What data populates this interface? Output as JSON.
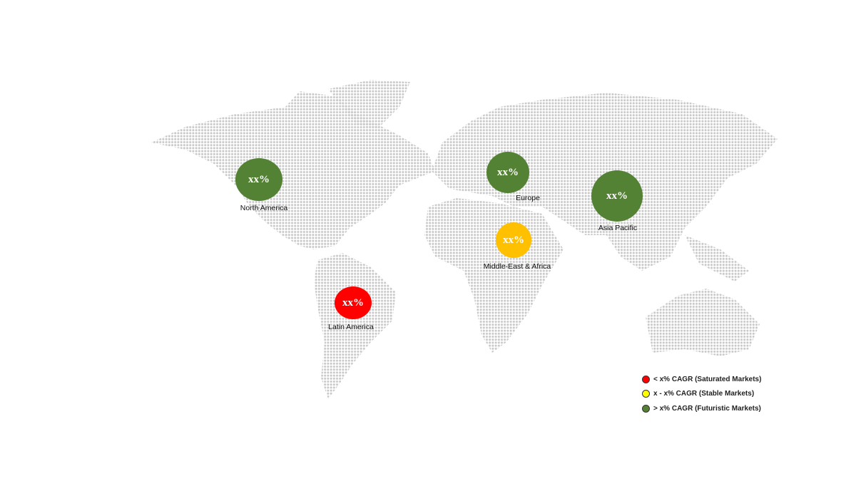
{
  "colors": {
    "saturated": "#ff0000",
    "stable": "#ffff00",
    "futuristic": "#548235",
    "bubble_yellow": "#ffc000",
    "land_dots": "#c8c8c8"
  },
  "regions": [
    {
      "name": "North America",
      "value": "xx%",
      "category": "futuristic"
    },
    {
      "name": "Europe",
      "value": "xx%",
      "category": "futuristic"
    },
    {
      "name": "Asia Pacific",
      "value": "xx%",
      "category": "futuristic"
    },
    {
      "name": "Middle-East & Africa",
      "value": "xx%",
      "category": "stable"
    },
    {
      "name": "Latin America",
      "value": "xx%",
      "category": "saturated"
    }
  ],
  "legend": [
    {
      "label": "< x% CAGR (Saturated Markets)",
      "color": "#ff0000"
    },
    {
      "label": "x - x% CAGR (Stable Markets)",
      "color": "#ffff00"
    },
    {
      "label": "> x% CAGR (Futuristic Markets)",
      "color": "#548235"
    }
  ]
}
